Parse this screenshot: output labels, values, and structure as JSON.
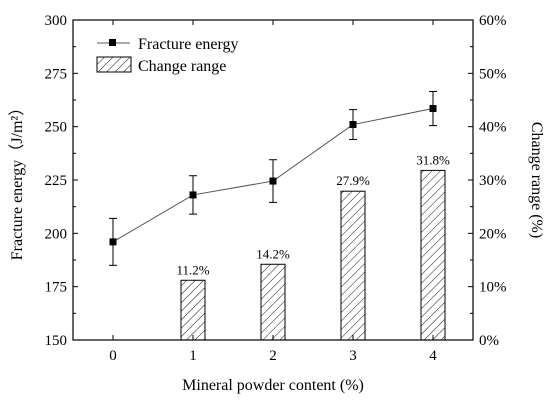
{
  "chart_data": {
    "type": "bar+line",
    "x": [
      0,
      1,
      2,
      3,
      4
    ],
    "xlabel": "Mineral powder content (%)",
    "ylabel_left": "Fracture energy（J/m²）",
    "ylabel_right": "Change range (%)",
    "ylim_left": [
      150,
      300
    ],
    "yticks_left": [
      150,
      175,
      200,
      225,
      250,
      275,
      300
    ],
    "ylim_right": [
      0,
      60
    ],
    "yticks_right": [
      "0%",
      "10%",
      "20%",
      "30%",
      "40%",
      "50%",
      "60%"
    ],
    "legend_position": "top-left",
    "series": [
      {
        "name": "Fracture energy",
        "kind": "line",
        "axis": "left",
        "values": [
          196,
          218,
          224.5,
          251,
          258.5
        ],
        "error": [
          11,
          9,
          10,
          7,
          8
        ]
      },
      {
        "name": "Change range",
        "kind": "bar",
        "axis": "right",
        "x": [
          1,
          2,
          3,
          4
        ],
        "values": [
          11.2,
          14.2,
          27.9,
          31.8
        ],
        "labels": [
          "11.2%",
          "14.2%",
          "27.9%",
          "31.8%"
        ]
      }
    ]
  }
}
